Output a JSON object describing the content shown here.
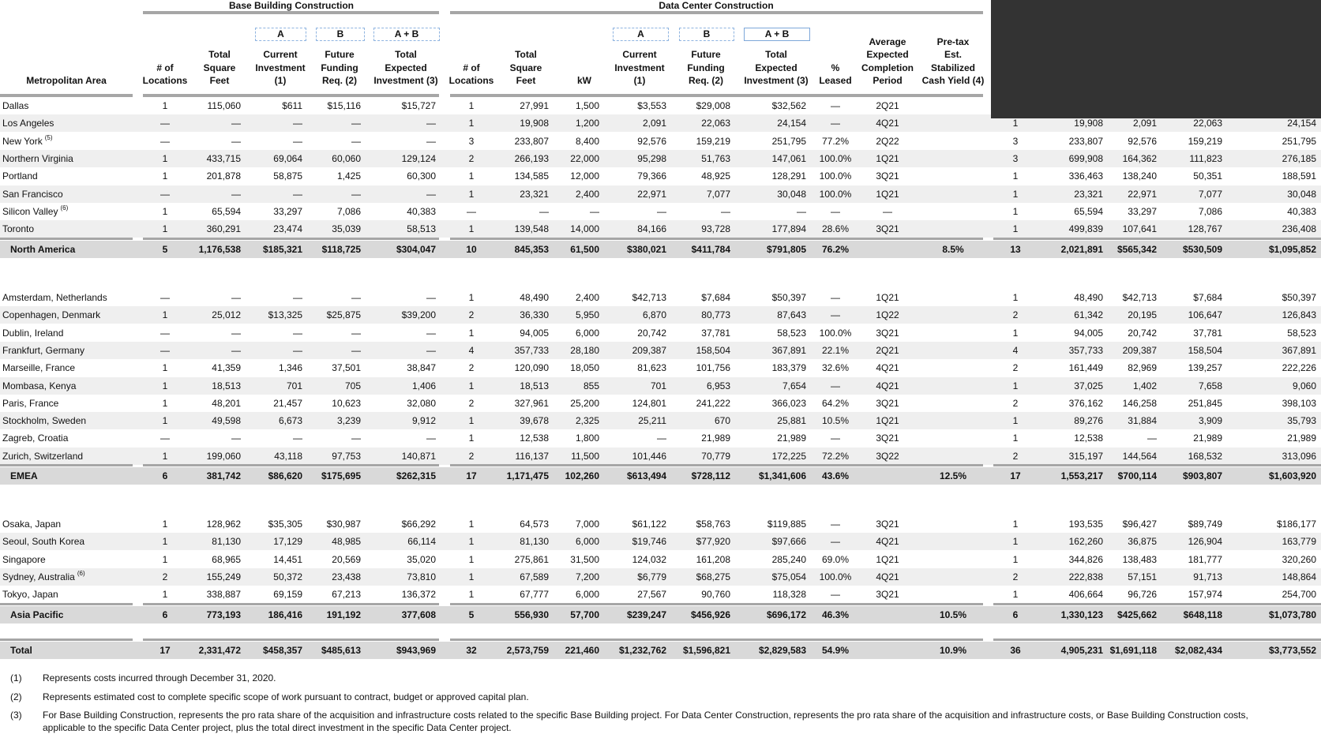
{
  "groups": {
    "base": "Base Building Construction",
    "dc": "Data Center Construction"
  },
  "boxes": {
    "a": "A",
    "b": "B",
    "ab": "A + B"
  },
  "headers": {
    "metro": "Metropolitan Area",
    "bb_locations": "# of\nLocations",
    "bb_sqft": "Total\nSquare\nFeet",
    "bb_current": "Current\nInvestment\n(1)",
    "bb_future": "Future\nFunding\nReq. (2)",
    "bb_total": "Total\nExpected\nInvestment (3)",
    "dc_locations": "# of\nLocations",
    "dc_sqft": "Total\nSquare\nFeet",
    "dc_kw": "kW",
    "dc_current": "Current\nInvestment\n(1)",
    "dc_future": "Future\nFunding\nReq. (2)",
    "dc_total": "Total\nExpected\nInvestment (3)",
    "dc_leased": "%\nLeased",
    "dc_period": "Average\nExpected\nCompletion\nPeriod",
    "dc_yield": "Pre-tax\nEst.\nStabilized\nCash Yield (4)"
  },
  "sections": [
    {
      "rows": [
        {
          "name": "Dallas",
          "note": "",
          "values": [
            "1",
            "115,060",
            "$611",
            "$15,116",
            "$15,727",
            "1",
            "27,991",
            "1,500",
            "$3,553",
            "$29,008",
            "$32,562",
            "—",
            "2Q21",
            "",
            "",
            "",
            "",
            "",
            ""
          ]
        },
        {
          "name": "Los Angeles",
          "note": "",
          "values": [
            "—",
            "—",
            "—",
            "—",
            "—",
            "1",
            "19,908",
            "1,200",
            "2,091",
            "22,063",
            "24,154",
            "—",
            "4Q21",
            "",
            "1",
            "19,908",
            "2,091",
            "22,063",
            "24,154"
          ]
        },
        {
          "name": "New York",
          "note": "(5)",
          "values": [
            "—",
            "—",
            "—",
            "—",
            "—",
            "3",
            "233,807",
            "8,400",
            "92,576",
            "159,219",
            "251,795",
            "77.2%",
            "2Q22",
            "",
            "3",
            "233,807",
            "92,576",
            "159,219",
            "251,795"
          ]
        },
        {
          "name": "Northern Virginia",
          "note": "",
          "values": [
            "1",
            "433,715",
            "69,064",
            "60,060",
            "129,124",
            "2",
            "266,193",
            "22,000",
            "95,298",
            "51,763",
            "147,061",
            "100.0%",
            "1Q21",
            "",
            "3",
            "699,908",
            "164,362",
            "111,823",
            "276,185"
          ]
        },
        {
          "name": "Portland",
          "note": "",
          "values": [
            "1",
            "201,878",
            "58,875",
            "1,425",
            "60,300",
            "1",
            "134,585",
            "12,000",
            "79,366",
            "48,925",
            "128,291",
            "100.0%",
            "3Q21",
            "",
            "1",
            "336,463",
            "138,240",
            "50,351",
            "188,591"
          ]
        },
        {
          "name": "San Francisco",
          "note": "",
          "values": [
            "—",
            "—",
            "—",
            "—",
            "—",
            "1",
            "23,321",
            "2,400",
            "22,971",
            "7,077",
            "30,048",
            "100.0%",
            "1Q21",
            "",
            "1",
            "23,321",
            "22,971",
            "7,077",
            "30,048"
          ]
        },
        {
          "name": "Silicon Valley",
          "note": "(6)",
          "values": [
            "1",
            "65,594",
            "33,297",
            "7,086",
            "40,383",
            "—",
            "—",
            "—",
            "—",
            "—",
            "—",
            "—",
            "—",
            "",
            "1",
            "65,594",
            "33,297",
            "7,086",
            "40,383"
          ]
        },
        {
          "name": "Toronto",
          "note": "",
          "values": [
            "1",
            "360,291",
            "23,474",
            "35,039",
            "58,513",
            "1",
            "139,548",
            "14,000",
            "84,166",
            "93,728",
            "177,894",
            "28.6%",
            "3Q21",
            "",
            "1",
            "499,839",
            "107,641",
            "128,767",
            "236,408"
          ]
        }
      ],
      "subtotal": {
        "name": "North America",
        "values": [
          "5",
          "1,176,538",
          "$185,321",
          "$118,725",
          "$304,047",
          "10",
          "845,353",
          "61,500",
          "$380,021",
          "$411,784",
          "$791,805",
          "76.2%",
          "",
          "8.5%",
          "13",
          "2,021,891",
          "$565,342",
          "$530,509",
          "$1,095,852"
        ]
      }
    },
    {
      "rows": [
        {
          "name": "Amsterdam, Netherlands",
          "note": "",
          "values": [
            "—",
            "—",
            "—",
            "—",
            "—",
            "1",
            "48,490",
            "2,400",
            "$42,713",
            "$7,684",
            "$50,397",
            "—",
            "1Q21",
            "",
            "1",
            "48,490",
            "$42,713",
            "$7,684",
            "$50,397"
          ]
        },
        {
          "name": "Copenhagen, Denmark",
          "note": "",
          "values": [
            "1",
            "25,012",
            "$13,325",
            "$25,875",
            "$39,200",
            "2",
            "36,330",
            "5,950",
            "6,870",
            "80,773",
            "87,643",
            "—",
            "1Q22",
            "",
            "2",
            "61,342",
            "20,195",
            "106,647",
            "126,843"
          ]
        },
        {
          "name": "Dublin, Ireland",
          "note": "",
          "values": [
            "—",
            "—",
            "—",
            "—",
            "—",
            "1",
            "94,005",
            "6,000",
            "20,742",
            "37,781",
            "58,523",
            "100.0%",
            "3Q21",
            "",
            "1",
            "94,005",
            "20,742",
            "37,781",
            "58,523"
          ]
        },
        {
          "name": "Frankfurt, Germany",
          "note": "",
          "values": [
            "—",
            "—",
            "—",
            "—",
            "—",
            "4",
            "357,733",
            "28,180",
            "209,387",
            "158,504",
            "367,891",
            "22.1%",
            "2Q21",
            "",
            "4",
            "357,733",
            "209,387",
            "158,504",
            "367,891"
          ]
        },
        {
          "name": "Marseille, France",
          "note": "",
          "values": [
            "1",
            "41,359",
            "1,346",
            "37,501",
            "38,847",
            "2",
            "120,090",
            "18,050",
            "81,623",
            "101,756",
            "183,379",
            "32.6%",
            "4Q21",
            "",
            "2",
            "161,449",
            "82,969",
            "139,257",
            "222,226"
          ]
        },
        {
          "name": "Mombasa, Kenya",
          "note": "",
          "values": [
            "1",
            "18,513",
            "701",
            "705",
            "1,406",
            "1",
            "18,513",
            "855",
            "701",
            "6,953",
            "7,654",
            "—",
            "4Q21",
            "",
            "1",
            "37,025",
            "1,402",
            "7,658",
            "9,060"
          ]
        },
        {
          "name": "Paris, France",
          "note": "",
          "values": [
            "1",
            "48,201",
            "21,457",
            "10,623",
            "32,080",
            "2",
            "327,961",
            "25,200",
            "124,801",
            "241,222",
            "366,023",
            "64.2%",
            "3Q21",
            "",
            "2",
            "376,162",
            "146,258",
            "251,845",
            "398,103"
          ]
        },
        {
          "name": "Stockholm, Sweden",
          "note": "",
          "values": [
            "1",
            "49,598",
            "6,673",
            "3,239",
            "9,912",
            "1",
            "39,678",
            "2,325",
            "25,211",
            "670",
            "25,881",
            "10.5%",
            "1Q21",
            "",
            "1",
            "89,276",
            "31,884",
            "3,909",
            "35,793"
          ]
        },
        {
          "name": "Zagreb, Croatia",
          "note": "",
          "values": [
            "—",
            "—",
            "—",
            "—",
            "—",
            "1",
            "12,538",
            "1,800",
            "—",
            "21,989",
            "21,989",
            "—",
            "3Q21",
            "",
            "1",
            "12,538",
            "—",
            "21,989",
            "21,989"
          ]
        },
        {
          "name": "Zurich, Switzerland",
          "note": "",
          "values": [
            "1",
            "199,060",
            "43,118",
            "97,753",
            "140,871",
            "2",
            "116,137",
            "11,500",
            "101,446",
            "70,779",
            "172,225",
            "72.2%",
            "3Q22",
            "",
            "2",
            "315,197",
            "144,564",
            "168,532",
            "313,096"
          ]
        }
      ],
      "subtotal": {
        "name": "EMEA",
        "values": [
          "6",
          "381,742",
          "$86,620",
          "$175,695",
          "$262,315",
          "17",
          "1,171,475",
          "102,260",
          "$613,494",
          "$728,112",
          "$1,341,606",
          "43.6%",
          "",
          "12.5%",
          "17",
          "1,553,217",
          "$700,114",
          "$903,807",
          "$1,603,920"
        ]
      }
    },
    {
      "rows": [
        {
          "name": "Osaka, Japan",
          "note": "",
          "values": [
            "1",
            "128,962",
            "$35,305",
            "$30,987",
            "$66,292",
            "1",
            "64,573",
            "7,000",
            "$61,122",
            "$58,763",
            "$119,885",
            "—",
            "3Q21",
            "",
            "1",
            "193,535",
            "$96,427",
            "$89,749",
            "$186,177"
          ]
        },
        {
          "name": "Seoul, South Korea",
          "note": "",
          "values": [
            "1",
            "81,130",
            "17,129",
            "48,985",
            "66,114",
            "1",
            "81,130",
            "6,000",
            "$19,746",
            "$77,920",
            "$97,666",
            "—",
            "4Q21",
            "",
            "1",
            "162,260",
            "36,875",
            "126,904",
            "163,779"
          ]
        },
        {
          "name": "Singapore",
          "note": "",
          "values": [
            "1",
            "68,965",
            "14,451",
            "20,569",
            "35,020",
            "1",
            "275,861",
            "31,500",
            "124,032",
            "161,208",
            "285,240",
            "69.0%",
            "1Q21",
            "",
            "1",
            "344,826",
            "138,483",
            "181,777",
            "320,260"
          ]
        },
        {
          "name": "Sydney, Australia",
          "note": "(6)",
          "values": [
            "2",
            "155,249",
            "50,372",
            "23,438",
            "73,810",
            "1",
            "67,589",
            "7,200",
            "$6,779",
            "$68,275",
            "$75,054",
            "100.0%",
            "4Q21",
            "",
            "2",
            "222,838",
            "57,151",
            "91,713",
            "148,864"
          ]
        },
        {
          "name": "Tokyo, Japan",
          "note": "",
          "values": [
            "1",
            "338,887",
            "69,159",
            "67,213",
            "136,372",
            "1",
            "67,777",
            "6,000",
            "27,567",
            "90,760",
            "118,328",
            "—",
            "3Q21",
            "",
            "1",
            "406,664",
            "96,726",
            "157,974",
            "254,700"
          ]
        }
      ],
      "subtotal": {
        "name": "Asia Pacific",
        "values": [
          "6",
          "773,193",
          "186,416",
          "191,192",
          "377,608",
          "5",
          "556,930",
          "57,700",
          "$239,247",
          "$456,926",
          "$696,172",
          "46.3%",
          "",
          "10.5%",
          "6",
          "1,330,123",
          "$425,662",
          "$648,118",
          "$1,073,780"
        ]
      }
    }
  ],
  "total": {
    "name": "Total",
    "values": [
      "17",
      "2,331,472",
      "$458,357",
      "$485,613",
      "$943,969",
      "32",
      "2,573,759",
      "221,460",
      "$1,232,762",
      "$1,596,821",
      "$2,829,583",
      "54.9%",
      "",
      "10.9%",
      "36",
      "4,905,231",
      "$1,691,118",
      "$2,082,434",
      "$3,773,552"
    ]
  },
  "footnotes": [
    {
      "num": "(1)",
      "lines": [
        "Represents costs incurred through December 31, 2020."
      ]
    },
    {
      "num": "(2)",
      "lines": [
        "Represents estimated cost to complete specific scope of work pursuant to contract, budget or approved capital plan."
      ]
    },
    {
      "num": "(3)",
      "lines": [
        "For Base Building Construction, represents the pro rata share of the acquisition and infrastructure costs related to the specific Base Building project. For Data Center Construction, represents the pro rata share of the acquisition and infrastructure costs, or Base Building Construction costs,",
        "applicable to the specific Data Center project, plus the total direct investment in the specific Data Center project."
      ]
    }
  ],
  "colors": {
    "stripe": "#efefef",
    "subtotal": "#d9d9d9",
    "rule": "#a6a6a6",
    "redaction": "#333333"
  }
}
